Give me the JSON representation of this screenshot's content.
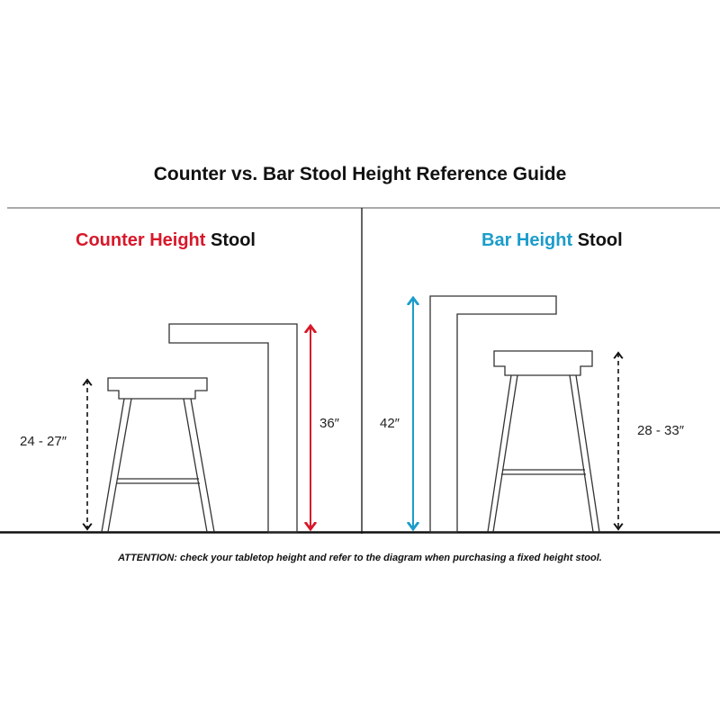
{
  "title": "Counter vs. Bar Stool Height  Reference Guide",
  "counter": {
    "heading_accent": "Counter Height",
    "heading_rest": "Stool",
    "stool_height_label": "24 - 27″",
    "counter_height_label": "36″",
    "accent_color": "#d7182a"
  },
  "bar": {
    "heading_accent": "Bar Height",
    "heading_rest": "Stool",
    "stool_height_label": "28 - 33″",
    "bar_height_label": "42″",
    "accent_color": "#1b9ccb"
  },
  "attention": {
    "label": "ATTENTION:",
    "text": "check your tabletop height and refer to the diagram when purchasing a fixed height stool."
  }
}
